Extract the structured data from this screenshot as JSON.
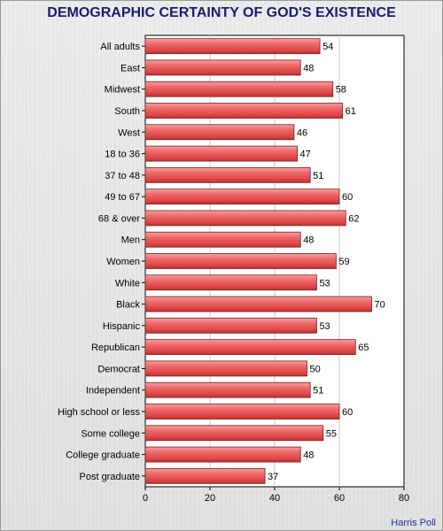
{
  "title": "DEMOGRAPHIC CERTAINTY OF GOD'S EXISTENCE",
  "credit": "Harris Poll",
  "colors": {
    "title": "#1c1c72",
    "bar": "#e85a5a",
    "bar_edge": "#7a1f1f",
    "credit": "#2b2b9a"
  },
  "chart_data": {
    "type": "bar",
    "orientation": "horizontal",
    "title": "DEMOGRAPHIC CERTAINTY OF GOD'S EXISTENCE",
    "categories": [
      "All adults",
      "East",
      "Midwest",
      "South",
      "West",
      "18 to 36",
      "37 to 48",
      "49 to 67",
      "68 & over",
      "Men",
      "Women",
      "White",
      "Black",
      "Hispanic",
      "Republican",
      "Democrat",
      "Independent",
      "High school or less",
      "Some college",
      "College graduate",
      "Post graduate"
    ],
    "values": [
      54,
      48,
      58,
      61,
      46,
      47,
      51,
      60,
      62,
      48,
      59,
      53,
      70,
      53,
      65,
      50,
      51,
      60,
      55,
      48,
      37
    ],
    "xlim": [
      0,
      80
    ],
    "xticks": [
      0,
      20,
      40,
      60,
      80
    ],
    "grid": true,
    "legend": "none"
  }
}
